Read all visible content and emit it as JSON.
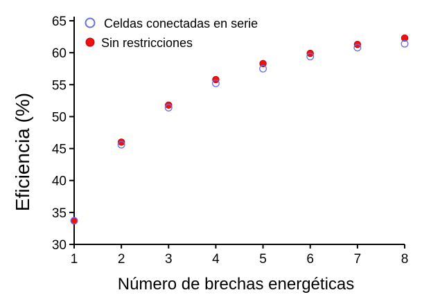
{
  "chart_data": {
    "type": "scatter",
    "title": "",
    "xlabel": "Número de brechas energéticas",
    "ylabel": "Eficiencia (%)",
    "xlim": [
      1,
      8
    ],
    "ylim": [
      30,
      65
    ],
    "x_ticks": [
      1,
      2,
      3,
      4,
      5,
      6,
      7,
      8
    ],
    "y_ticks": [
      30,
      35,
      40,
      45,
      50,
      55,
      60,
      65
    ],
    "grid": false,
    "legend_position": "top-left",
    "series": [
      {
        "name": "Celdas conectadas en serie",
        "marker": "open-circle",
        "color": "#6b6be6",
        "x": [
          1,
          2,
          3,
          4,
          5,
          6,
          7,
          8
        ],
        "y": [
          33.7,
          45.6,
          51.4,
          55.2,
          57.5,
          59.4,
          60.8,
          61.4
        ]
      },
      {
        "name": "Sin restricciones",
        "marker": "filled-circle",
        "color": "#ee1111",
        "x": [
          1,
          2,
          3,
          4,
          5,
          6,
          7,
          8
        ],
        "y": [
          33.7,
          46.0,
          51.8,
          55.8,
          58.3,
          59.9,
          61.3,
          62.3
        ]
      }
    ]
  }
}
